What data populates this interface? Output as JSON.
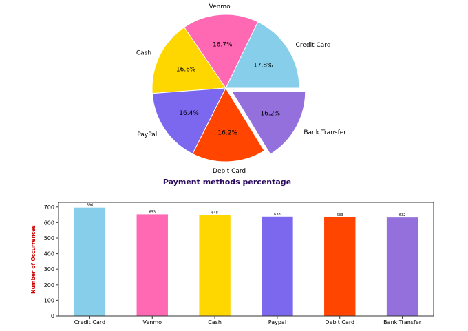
{
  "chart_data": [
    {
      "type": "pie",
      "title": "Payment methods percentage",
      "title_color": "#2a0a5e",
      "start_angle_deg": 0,
      "direction": "counterclockwise",
      "slices": [
        {
          "label": "Credit Card",
          "value": 17.8,
          "pct_label": "17.8%",
          "color": "#87ceeb",
          "explode": false
        },
        {
          "label": "Venmo",
          "value": 16.7,
          "pct_label": "16.7%",
          "color": "#ff69b4",
          "explode": false
        },
        {
          "label": "Cash",
          "value": 16.6,
          "pct_label": "16.6%",
          "color": "#ffd700",
          "explode": false
        },
        {
          "label": "PayPal",
          "value": 16.4,
          "pct_label": "16.4%",
          "color": "#7b68ee",
          "explode": false
        },
        {
          "label": "Debit Card",
          "value": 16.2,
          "pct_label": "16.2%",
          "color": "#ff4500",
          "explode": false
        },
        {
          "label": "Bank Transfer",
          "value": 16.2,
          "pct_label": "16.2%",
          "color": "#9370db",
          "explode": true
        }
      ]
    },
    {
      "type": "bar",
      "title": "",
      "xlabel": "",
      "ylabel": "Number of Occurrences",
      "ylabel_color": "#cc0000",
      "categories": [
        "Credit Card",
        "Venmo",
        "Cash",
        "Paypal",
        "Debit Card",
        "Bank Transfer"
      ],
      "values": [
        696,
        653,
        648,
        638,
        633,
        632
      ],
      "value_labels": [
        "696",
        "653",
        "648",
        "638",
        "633",
        "632"
      ],
      "colors": [
        "#87ceeb",
        "#ff69b4",
        "#ffd700",
        "#7b68ee",
        "#ff4500",
        "#9370db"
      ],
      "ylim": [
        0,
        730
      ],
      "yticks": [
        0,
        100,
        200,
        300,
        400,
        500,
        600,
        700
      ],
      "ytick_labels": [
        "0",
        "100",
        "200",
        "300",
        "400",
        "500",
        "600",
        "700"
      ],
      "grid": false
    }
  ]
}
